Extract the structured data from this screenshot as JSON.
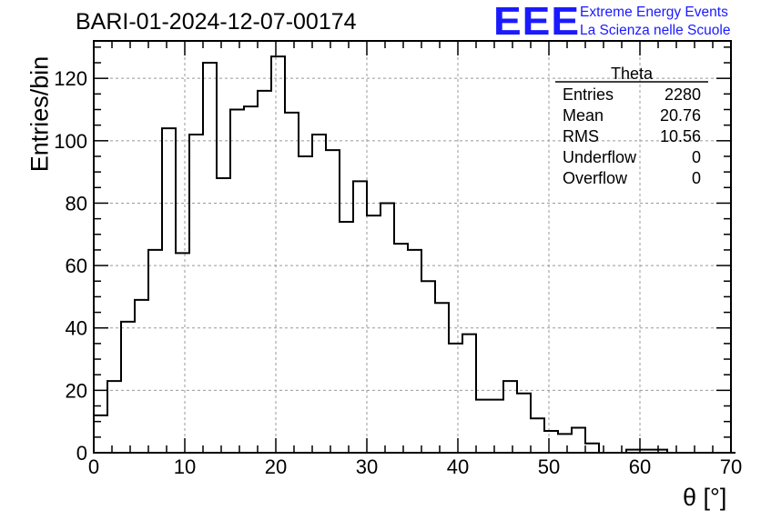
{
  "chart_data": {
    "type": "histogram",
    "title": "BARI-01-2024-12-07-00174",
    "xlabel": "θ [°]",
    "ylabel": "Entries/bin",
    "xlim": [
      0,
      70
    ],
    "ylim": [
      0,
      132
    ],
    "xticks": [
      0,
      10,
      20,
      30,
      40,
      50,
      60,
      70
    ],
    "yticks": [
      0,
      20,
      40,
      60,
      80,
      100,
      120
    ],
    "grid": true,
    "bin_width": 1.5,
    "bin_values": [
      12,
      23,
      42,
      49,
      65,
      104,
      64,
      102,
      125,
      88,
      110,
      111,
      116,
      127,
      109,
      95,
      102,
      97,
      74,
      87,
      76,
      80,
      67,
      65,
      55,
      48,
      35,
      38,
      17,
      17,
      23,
      19,
      11,
      7,
      6,
      8,
      3,
      0,
      0,
      1,
      1,
      1,
      0,
      0,
      0,
      0,
      0
    ],
    "stats_box": {
      "title": "Theta",
      "rows": [
        {
          "label": "Entries",
          "value": "2280"
        },
        {
          "label": "Mean",
          "value": "20.76"
        },
        {
          "label": "RMS",
          "value": "10.56"
        },
        {
          "label": "Underflow",
          "value": "0"
        },
        {
          "label": "Overflow",
          "value": "0"
        }
      ]
    }
  },
  "logo": {
    "mark": "EEE",
    "line1": "Extreme Energy Events",
    "line2": "La Scienza nelle Scuole",
    "color": "#1a1aff"
  }
}
